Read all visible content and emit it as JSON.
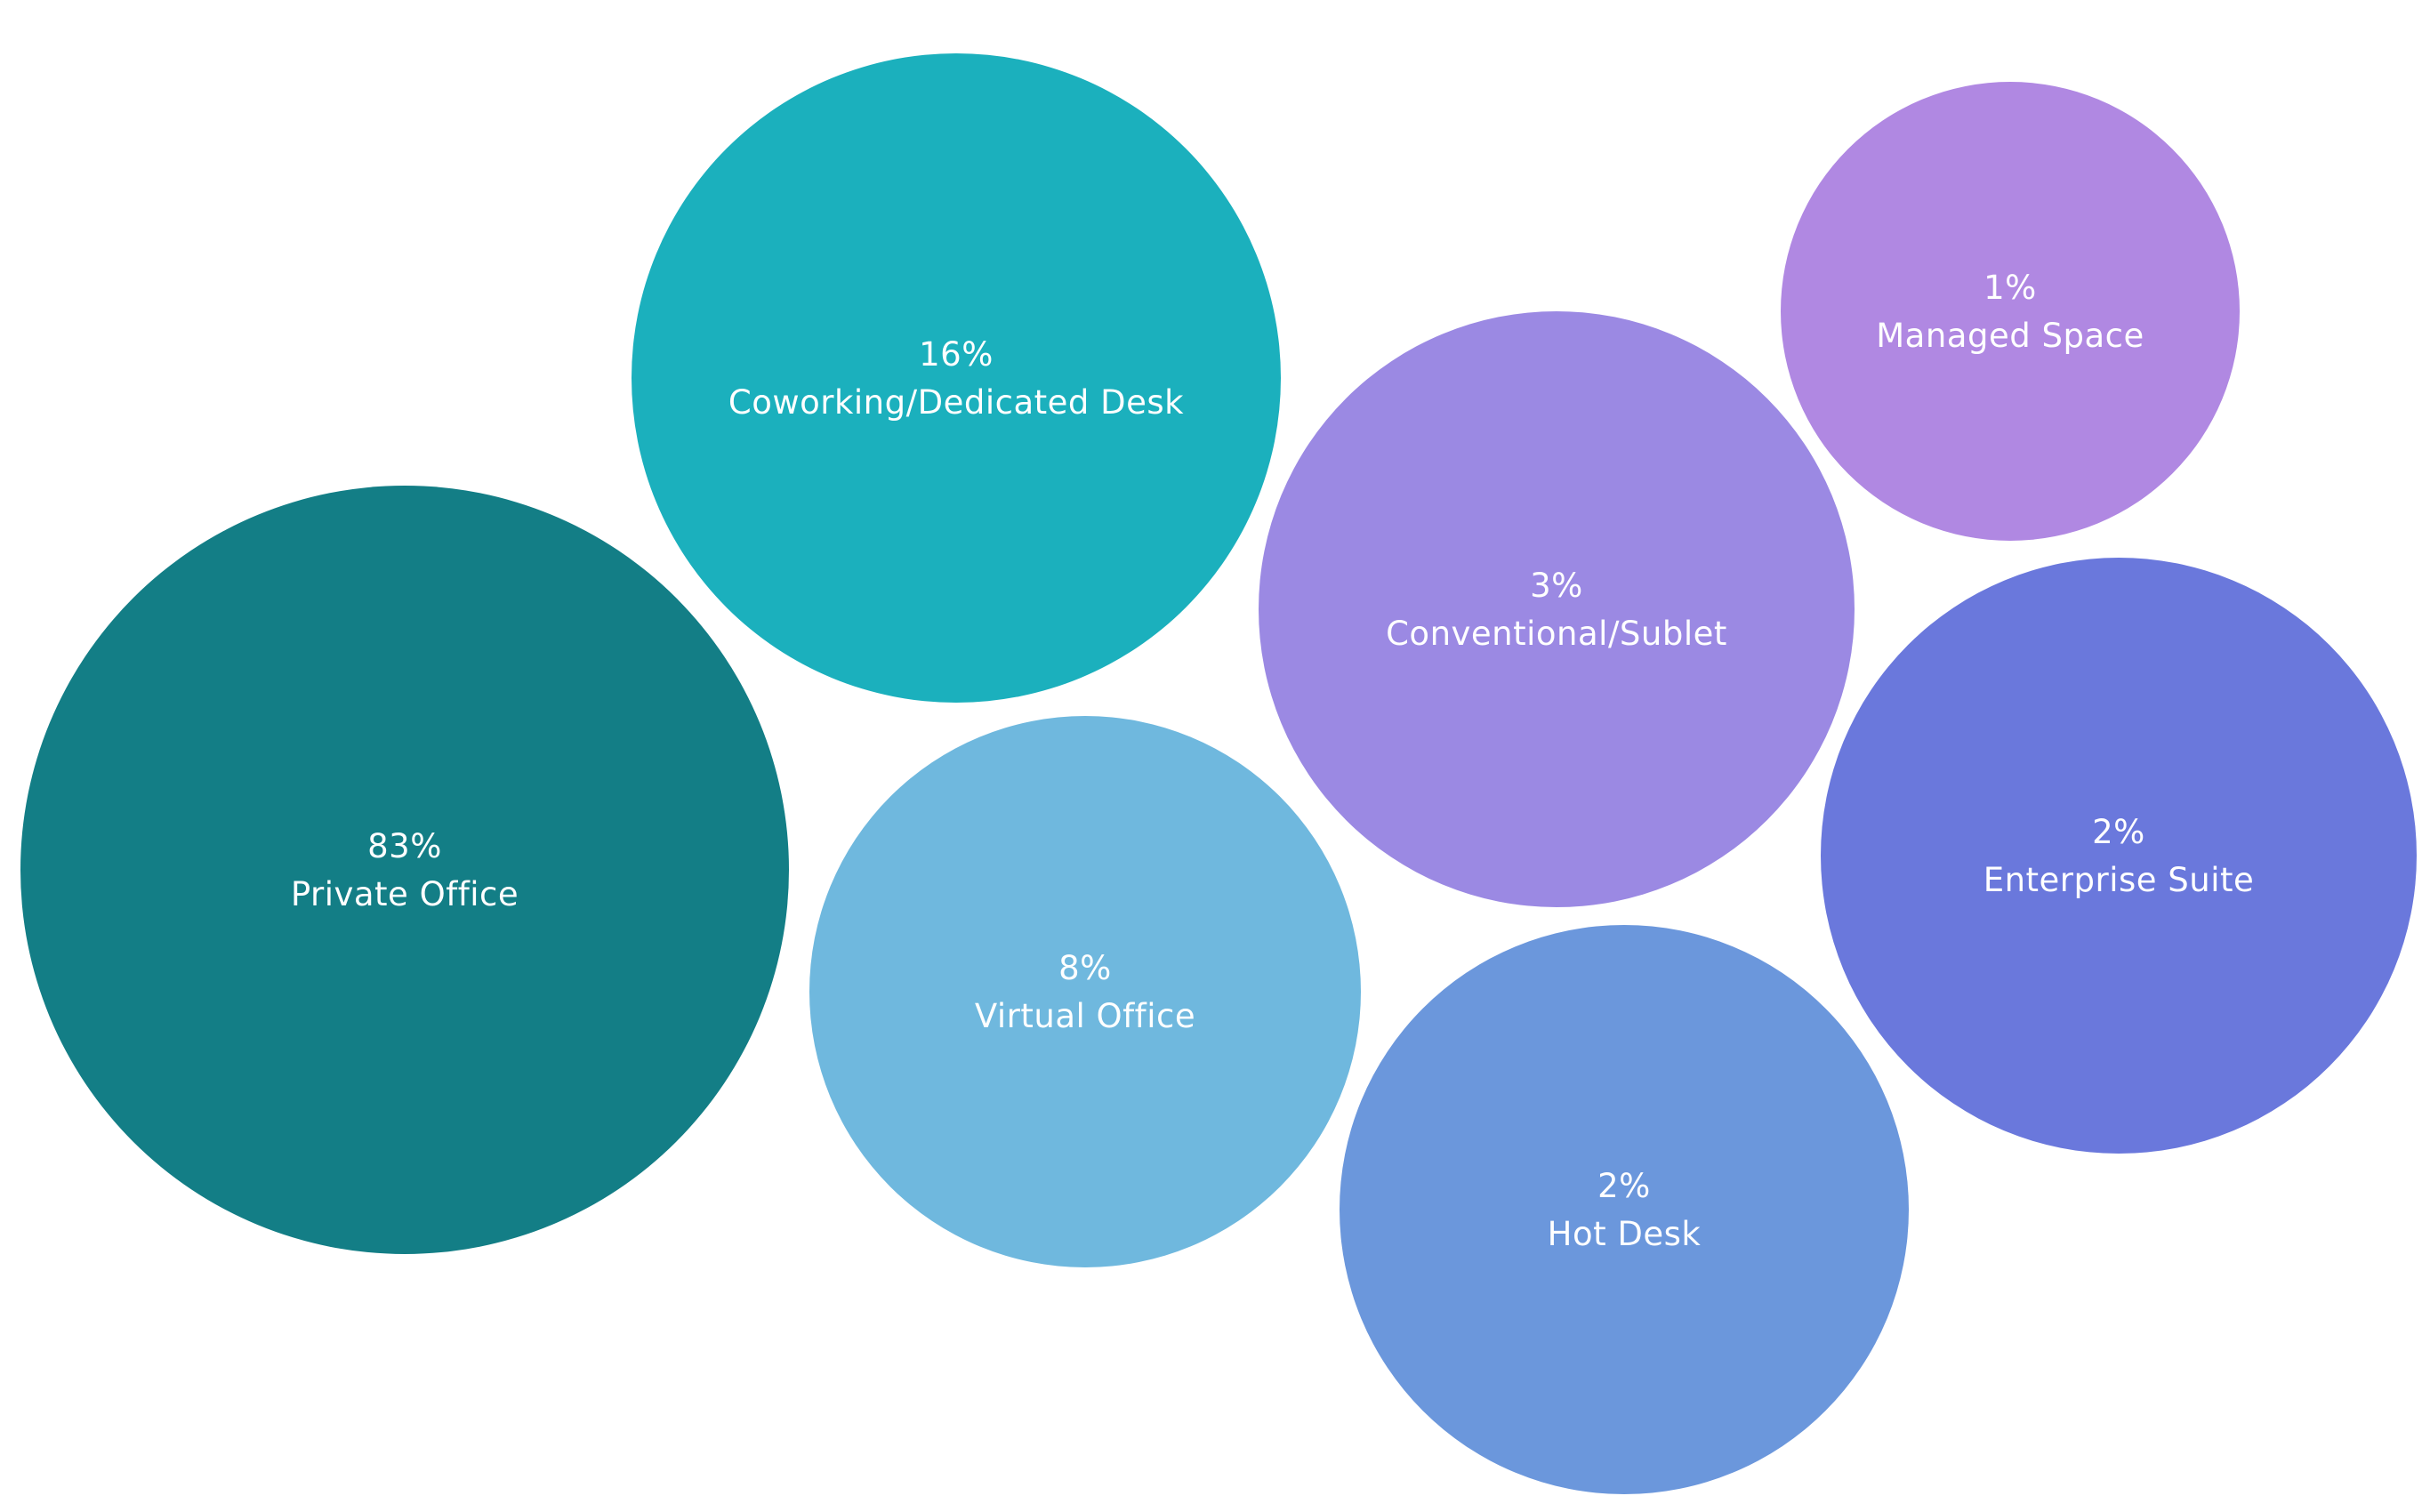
{
  "chart_data": {
    "type": "bubble",
    "series": [
      {
        "label": "Private Office",
        "value": 83,
        "value_label": "83%",
        "color": "#137e86"
      },
      {
        "label": "Coworking/Dedicated Desk",
        "value": 16,
        "value_label": "16%",
        "color": "#1bb0bd"
      },
      {
        "label": "Virtual Office",
        "value": 8,
        "value_label": "8%",
        "color": "#6fb8de"
      },
      {
        "label": "Conventional/Sublet",
        "value": 3,
        "value_label": "3%",
        "color": "#9b89e3"
      },
      {
        "label": "Hot Desk",
        "value": 2,
        "value_label": "2%",
        "color": "#6b97dc"
      },
      {
        "label": "Enterprise Suite",
        "value": 2,
        "value_label": "2%",
        "color": "#6a78dc"
      },
      {
        "label": "Managed Space",
        "value": 1,
        "value_label": "1%",
        "color": "#b088e2"
      }
    ]
  }
}
